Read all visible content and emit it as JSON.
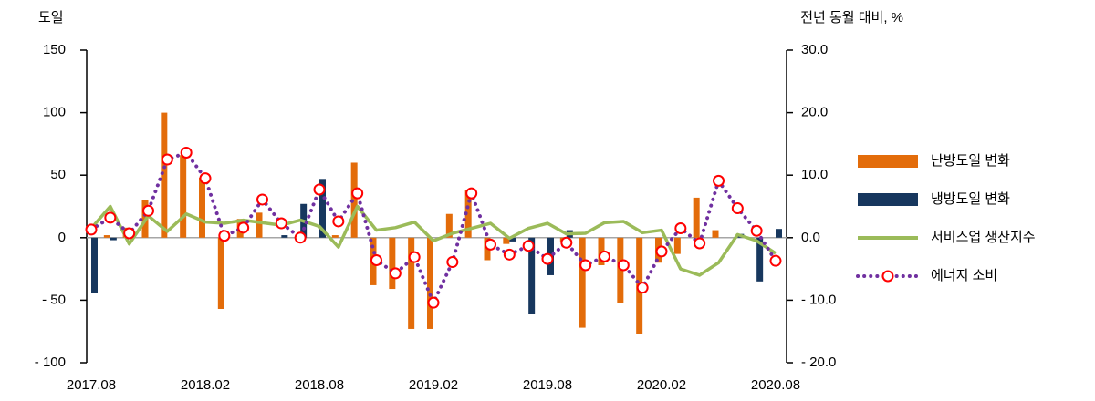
{
  "chart_data": {
    "type": "combo",
    "y_label": "도일",
    "y2_label": "전년 동월 대비, %",
    "categories": [
      "2017.08",
      null,
      null,
      null,
      null,
      null,
      "2018.02",
      null,
      null,
      null,
      null,
      null,
      "2018.08",
      null,
      null,
      null,
      null,
      null,
      "2019.02",
      null,
      null,
      null,
      null,
      null,
      "2019.08",
      null,
      null,
      null,
      null,
      null,
      "2020.02",
      null,
      null,
      null,
      null,
      null,
      "2020.08"
    ],
    "ylim": [
      -100,
      150
    ],
    "yticks": [
      {
        "value": -100,
        "label": "- 100"
      },
      {
        "value": -50,
        "label": "- 50"
      },
      0,
      50,
      100,
      150
    ],
    "y2lim": [
      -20,
      30
    ],
    "y2ticks": [
      {
        "value": -20,
        "label": "- 20.0"
      },
      {
        "value": -10,
        "label": "- 10.0"
      },
      {
        "value": 0,
        "label": "0.0"
      },
      {
        "value": 10,
        "label": "10.0"
      },
      {
        "value": 20,
        "label": "20.0"
      },
      {
        "value": 30,
        "label": "30.0"
      }
    ],
    "series": [
      {
        "name": "난방도일 변화",
        "type": "bar",
        "color": "#e36c0a",
        "axis": "y",
        "values": [
          0,
          2,
          8,
          30,
          100,
          66,
          48,
          -57,
          15,
          20,
          0,
          0,
          0,
          2,
          60,
          -38,
          -41,
          -73,
          -73,
          19,
          38,
          -18,
          -5,
          0,
          0,
          -3,
          -72,
          -22,
          -52,
          -77,
          -20,
          -13,
          32,
          6,
          0,
          0,
          0
        ]
      },
      {
        "name": "냉방도일 변화",
        "type": "bar",
        "color": "#17375e",
        "axis": "y",
        "values": [
          -44,
          -2,
          0,
          0,
          0,
          0,
          0,
          0,
          0,
          0,
          2,
          27,
          47,
          0,
          0,
          0,
          0,
          0,
          0,
          0,
          0,
          0,
          -3,
          -61,
          -30,
          6,
          0,
          0,
          0,
          0,
          0,
          0,
          0,
          0,
          3,
          -35,
          7
        ]
      },
      {
        "name": "서비스업 생산지수",
        "type": "line",
        "color": "#9bbb59",
        "axis": "y2",
        "values": [
          1.5,
          5,
          -1,
          3.5,
          1,
          3.8,
          2.5,
          2.3,
          2.8,
          2.4,
          2,
          2.8,
          1.8,
          -1.5,
          5,
          1.2,
          1.6,
          2.5,
          -0.5,
          0.7,
          1.5,
          2.3,
          -0.1,
          1.5,
          2.3,
          0.6,
          0.7,
          2.4,
          2.6,
          0.8,
          1.2,
          -5,
          -6,
          -4,
          0.5,
          -0.5,
          -2.5
        ]
      },
      {
        "name": "에너지 소비",
        "type": "dotted",
        "color": "#7030a0",
        "marker_color": "#ff0000",
        "axis": "y2",
        "values": [
          1.3,
          3.2,
          0.7,
          4.3,
          12.5,
          13.6,
          9.5,
          0.3,
          1.6,
          6.1,
          2.3,
          0,
          7.7,
          2.6,
          7.1,
          -3.6,
          -5.7,
          -3.1,
          -10.4,
          -3.9,
          7.1,
          -1.1,
          -2.7,
          -1.3,
          -3.4,
          -0.8,
          -4.4,
          -3.0,
          -4.4,
          -8,
          -2.2,
          1.5,
          -0.9,
          9.1,
          4.7,
          1.1,
          -3.7
        ]
      }
    ]
  }
}
